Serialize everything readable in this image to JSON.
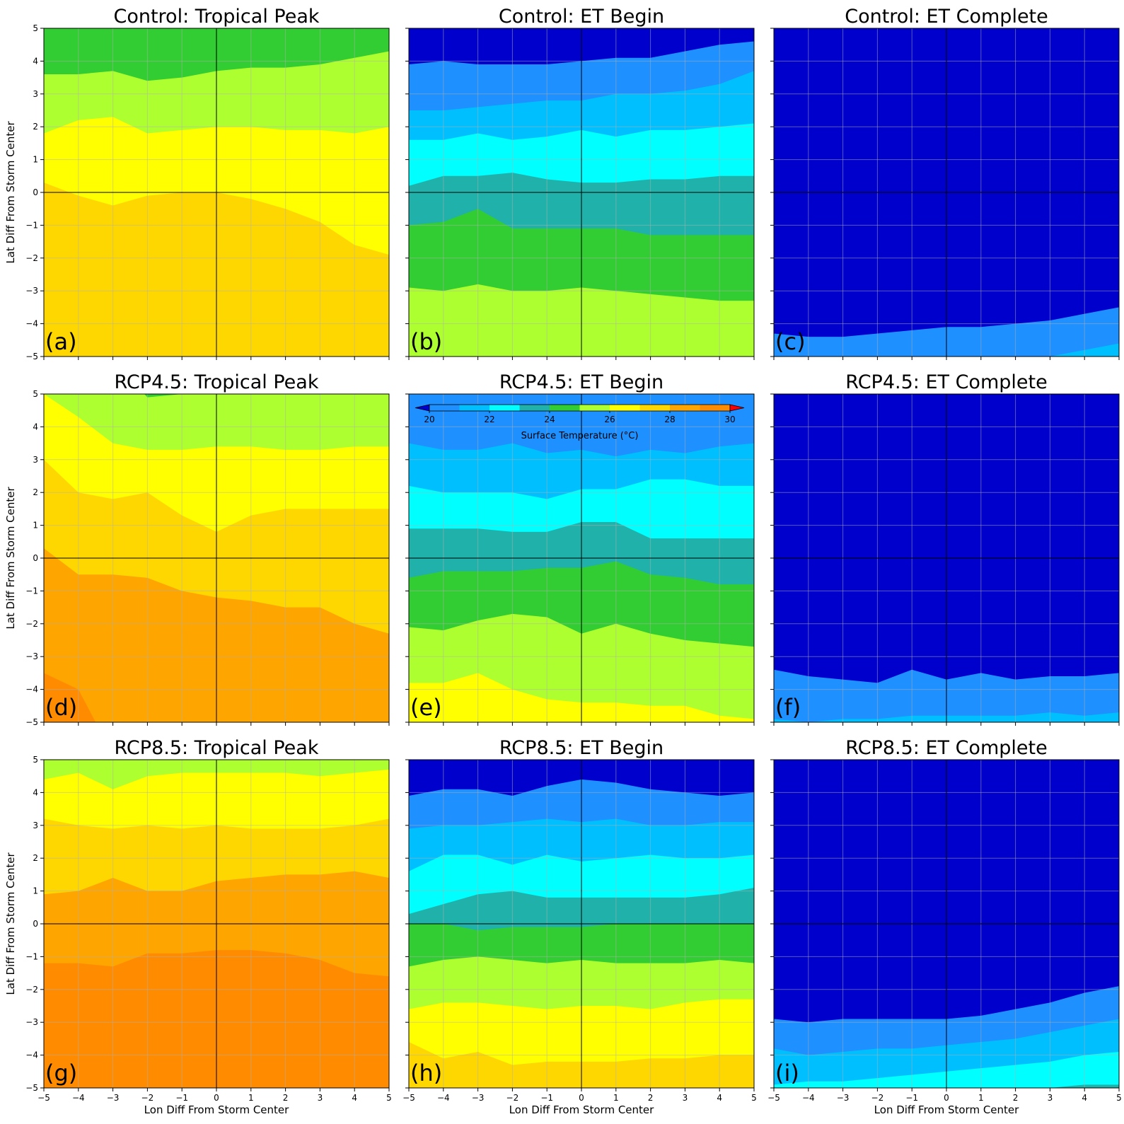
{
  "figure": {
    "colorbar": {
      "label": "Surface Temperature ($^\\circ$C)",
      "label_display": "Surface Temperature (°C)",
      "ticks": [
        "20",
        "22",
        "24",
        "26",
        "28",
        "30"
      ],
      "levels": [
        20,
        21,
        22,
        23,
        24,
        25,
        26,
        27,
        28,
        29,
        30
      ],
      "colors": {
        "below": "#0000cd",
        "20-21": "#1e90ff",
        "21-22": "#00bfff",
        "22-23": "#00ffff",
        "23-24": "#20b2aa",
        "24-25": "#32cd32",
        "25-26": "#adff2f",
        "26-27": "#ffff00",
        "27-28": "#ffd700",
        "28-29": "#ffa500",
        "29-30": "#ff8c00",
        "above": "#ff0000"
      }
    }
  },
  "chart_data": [
    {
      "type": "heatmap",
      "panel": "(a)",
      "title": "Control: Tropical Peak",
      "xlabel": "",
      "ylabel": "Lat Diff From Storm Center",
      "xlim": [
        -5,
        5
      ],
      "ylim": [
        -5,
        5
      ],
      "xticks": [
        "",
        "",
        "",
        "",
        "",
        "",
        "",
        "",
        "",
        "",
        ""
      ],
      "yticks": [
        "−5",
        "−4",
        "−3",
        "−2",
        "−1",
        "0",
        "1",
        "2",
        "3",
        "4",
        "5"
      ],
      "grid": true,
      "contour_boundaries": {
        "x": [
          -5,
          -4,
          -3,
          -2,
          -1,
          0,
          1,
          2,
          3,
          4,
          5
        ],
        "levels": [
          27,
          26,
          25,
          24
        ],
        "y": [
          [
            0.3,
            -0.1,
            -0.4,
            -0.1,
            0.0,
            0.0,
            -0.2,
            -0.5,
            -0.9,
            -1.6,
            -1.9
          ],
          [
            1.8,
            2.2,
            2.3,
            1.8,
            1.9,
            2.0,
            2.0,
            1.9,
            1.9,
            1.8,
            2.0
          ],
          [
            3.6,
            3.6,
            3.7,
            3.4,
            3.5,
            3.7,
            3.8,
            3.8,
            3.9,
            4.1,
            4.3
          ],
          [
            6,
            6,
            6,
            6,
            6,
            6,
            6,
            6,
            6,
            6,
            6
          ]
        ],
        "bottom_level_color": "27-28",
        "band_colors": [
          "26-27",
          "25-26",
          "24-25"
        ]
      }
    },
    {
      "type": "heatmap",
      "panel": "(b)",
      "title": "Control: ET Begin",
      "xlabel": "",
      "ylabel": "",
      "xlim": [
        -5,
        5
      ],
      "ylim": [
        -5,
        5
      ],
      "xticks": [
        "",
        "",
        "",
        "",
        "",
        "",
        "",
        "",
        "",
        "",
        ""
      ],
      "yticks": [
        "",
        "",
        "",
        "",
        "",
        "",
        "",
        "",
        "",
        "",
        ""
      ],
      "grid": true,
      "contour_boundaries": {
        "x": [
          -5,
          -4,
          -3,
          -2,
          -1,
          0,
          1,
          2,
          3,
          4,
          5
        ],
        "levels": [
          25,
          24,
          23,
          22,
          21,
          20
        ],
        "y": [
          [
            -2.9,
            -3.0,
            -2.8,
            -3.0,
            -3.0,
            -2.9,
            -3.0,
            -3.1,
            -3.2,
            -3.3,
            -3.3
          ],
          [
            -1.0,
            -0.9,
            -0.5,
            -1.1,
            -1.1,
            -1.1,
            -1.1,
            -1.3,
            -1.3,
            -1.3,
            -1.3
          ],
          [
            0.2,
            0.5,
            0.5,
            0.6,
            0.4,
            0.3,
            0.3,
            0.4,
            0.4,
            0.5,
            0.5
          ],
          [
            1.6,
            1.6,
            1.8,
            1.6,
            1.7,
            1.9,
            1.7,
            1.9,
            1.9,
            2.0,
            2.1
          ],
          [
            2.5,
            2.5,
            2.6,
            2.7,
            2.8,
            2.8,
            3.0,
            3.0,
            3.1,
            3.3,
            3.7
          ],
          [
            3.9,
            4.0,
            3.9,
            3.9,
            3.9,
            4.0,
            4.1,
            4.1,
            4.3,
            4.5,
            4.6
          ]
        ],
        "bottom_level_color": "25-26",
        "band_colors": [
          "24-25",
          "23-24",
          "22-23",
          "21-22",
          "20-21",
          "below"
        ]
      }
    },
    {
      "type": "heatmap",
      "panel": "(c)",
      "title": "Control: ET Complete",
      "xlabel": "",
      "ylabel": "",
      "xlim": [
        -5,
        5
      ],
      "ylim": [
        -5,
        5
      ],
      "xticks": [
        "",
        "",
        "",
        "",
        "",
        "",
        "",
        "",
        "",
        "",
        ""
      ],
      "yticks": [
        "",
        "",
        "",
        "",
        "",
        "",
        "",
        "",
        "",
        "",
        ""
      ],
      "grid": true,
      "contour_boundaries": {
        "x": [
          -5,
          -4,
          -3,
          -2,
          -1,
          0,
          1,
          2,
          3,
          4,
          5
        ],
        "levels": [
          21,
          20
        ],
        "y": [
          [
            -6,
            -6,
            -6,
            -6,
            -6,
            -6,
            -6,
            -6,
            -5.0,
            -4.8,
            -4.6
          ],
          [
            -4.3,
            -4.4,
            -4.4,
            -4.3,
            -4.2,
            -4.1,
            -4.1,
            -4.0,
            -3.9,
            -3.7,
            -3.5
          ]
        ],
        "bottom_level_color": "21-22",
        "band_colors": [
          "20-21",
          "below"
        ]
      }
    },
    {
      "type": "heatmap",
      "panel": "(d)",
      "title": "RCP4.5: Tropical Peak",
      "xlabel": "",
      "ylabel": "Lat Diff From Storm Center",
      "xlim": [
        -5,
        5
      ],
      "ylim": [
        -5,
        5
      ],
      "xticks": [
        "",
        "",
        "",
        "",
        "",
        "",
        "",
        "",
        "",
        "",
        ""
      ],
      "yticks": [
        "−5",
        "−4",
        "−3",
        "−2",
        "−1",
        "0",
        "1",
        "2",
        "3",
        "4",
        "5"
      ],
      "grid": true,
      "contour_boundaries": {
        "x": [
          -5,
          -4,
          -3,
          -2,
          -1,
          0,
          1,
          2,
          3,
          4,
          5
        ],
        "levels": [
          29,
          28,
          27,
          26,
          25
        ],
        "y": [
          [
            -3.5,
            -4.0,
            -6,
            -6,
            -6,
            -6,
            -6,
            -6,
            -6,
            -6,
            -6
          ],
          [
            0.3,
            -0.5,
            -0.5,
            -0.6,
            -1.0,
            -1.2,
            -1.3,
            -1.5,
            -1.5,
            -2.0,
            -2.3
          ],
          [
            3.0,
            2.0,
            1.8,
            2.0,
            1.3,
            0.8,
            1.3,
            1.5,
            1.5,
            1.5,
            1.5
          ],
          [
            5.0,
            4.3,
            3.5,
            3.3,
            3.3,
            3.4,
            3.4,
            3.3,
            3.3,
            3.4,
            3.4
          ],
          [
            6,
            6,
            6,
            4.9,
            5.0,
            6,
            6,
            6,
            6,
            5.0,
            5.0
          ]
        ],
        "bottom_level_color": "29-30",
        "band_colors": [
          "28-29",
          "27-28",
          "26-27",
          "25-26",
          "24-25"
        ]
      }
    },
    {
      "type": "heatmap",
      "panel": "(e)",
      "title": "RCP4.5: ET Begin",
      "xlabel": "",
      "ylabel": "",
      "xlim": [
        -5,
        5
      ],
      "ylim": [
        -5,
        5
      ],
      "xticks": [
        "",
        "",
        "",
        "",
        "",
        "",
        "",
        "",
        "",
        "",
        ""
      ],
      "yticks": [
        "",
        "",
        "",
        "",
        "",
        "",
        "",
        "",
        "",
        "",
        ""
      ],
      "grid": true,
      "contour_boundaries": {
        "x": [
          -5,
          -4,
          -3,
          -2,
          -1,
          0,
          1,
          2,
          3,
          4,
          5
        ],
        "levels": [
          26,
          25,
          24,
          23,
          22,
          21,
          20
        ],
        "y": [
          [
            -6,
            -6,
            -6,
            -6,
            -6,
            -6,
            -6,
            -6,
            -6,
            -6,
            -6
          ],
          [
            -3.8,
            -3.8,
            -3.5,
            -4.0,
            -4.3,
            -4.4,
            -4.4,
            -4.5,
            -4.5,
            -4.8,
            -4.9
          ],
          [
            -2.1,
            -2.2,
            -1.9,
            -1.7,
            -1.8,
            -2.3,
            -2.0,
            -2.3,
            -2.5,
            -2.6,
            -2.7
          ],
          [
            -0.6,
            -0.4,
            -0.4,
            -0.4,
            -0.3,
            -0.3,
            -0.1,
            -0.5,
            -0.6,
            -0.8,
            -0.8
          ],
          [
            0.9,
            0.9,
            0.9,
            0.8,
            0.8,
            1.1,
            1.1,
            0.6,
            0.6,
            0.6,
            0.6
          ],
          [
            2.2,
            2.0,
            2.0,
            2.0,
            1.8,
            2.1,
            2.1,
            2.4,
            2.4,
            2.2,
            2.2
          ],
          [
            3.5,
            3.3,
            3.3,
            3.5,
            3.2,
            3.3,
            3.1,
            3.3,
            3.2,
            3.4,
            3.5
          ]
        ],
        "bottom_level_color": "27-28",
        "band_colors": [
          "26-27",
          "25-26",
          "24-25",
          "23-24",
          "22-23",
          "21-22",
          "20-21"
        ]
      }
    },
    {
      "type": "heatmap",
      "panel": "(f)",
      "title": "RCP4.5: ET Complete",
      "xlabel": "",
      "ylabel": "",
      "xlim": [
        -5,
        5
      ],
      "ylim": [
        -5,
        5
      ],
      "xticks": [
        "",
        "",
        "",
        "",
        "",
        "",
        "",
        "",
        "",
        "",
        ""
      ],
      "yticks": [
        "",
        "",
        "",
        "",
        "",
        "",
        "",
        "",
        "",
        "",
        ""
      ],
      "grid": true,
      "contour_boundaries": {
        "x": [
          -5,
          -4,
          -3,
          -2,
          -1,
          0,
          1,
          2,
          3,
          4,
          5
        ],
        "levels": [
          21,
          20
        ],
        "y": [
          [
            -4.9,
            -5.0,
            -4.9,
            -4.9,
            -4.8,
            -4.8,
            -4.8,
            -4.8,
            -4.7,
            -4.8,
            -4.7
          ],
          [
            -3.4,
            -3.6,
            -3.7,
            -3.8,
            -3.4,
            -3.7,
            -3.5,
            -3.7,
            -3.6,
            -3.6,
            -3.5
          ]
        ],
        "bottom_level_color": "21-22",
        "band_colors": [
          "20-21",
          "below"
        ]
      }
    },
    {
      "type": "heatmap",
      "panel": "(g)",
      "title": "RCP8.5: Tropical Peak",
      "xlabel": "Lon Diff From Storm Center",
      "ylabel": "Lat Diff From Storm Center",
      "xlim": [
        -5,
        5
      ],
      "ylim": [
        -5,
        5
      ],
      "xticks": [
        "−5",
        "−4",
        "−3",
        "−2",
        "−1",
        "0",
        "1",
        "2",
        "3",
        "4",
        "5"
      ],
      "yticks": [
        "−5",
        "−4",
        "−3",
        "−2",
        "−1",
        "0",
        "1",
        "2",
        "3",
        "4",
        "5"
      ],
      "grid": true,
      "contour_boundaries": {
        "x": [
          -5,
          -4,
          -3,
          -2,
          -1,
          0,
          1,
          2,
          3,
          4,
          5
        ],
        "levels": [
          28,
          27,
          26,
          25
        ],
        "y": [
          [
            -1.2,
            -1.2,
            -1.3,
            -0.9,
            -0.9,
            -0.8,
            -0.8,
            -0.9,
            -1.1,
            -1.5,
            -1.6
          ],
          [
            0.9,
            1.0,
            1.4,
            1.0,
            1.0,
            1.3,
            1.4,
            1.5,
            1.5,
            1.6,
            1.4
          ],
          [
            3.2,
            3.0,
            2.9,
            3.0,
            2.9,
            3.0,
            2.9,
            2.9,
            2.9,
            3.0,
            3.2
          ],
          [
            4.4,
            4.6,
            4.1,
            4.5,
            4.6,
            4.6,
            4.6,
            4.6,
            4.5,
            4.6,
            4.7
          ]
        ],
        "bottom_level_color": "29-30",
        "band_colors": [
          "28-29",
          "27-28",
          "26-27",
          "25-26"
        ]
      }
    },
    {
      "type": "heatmap",
      "panel": "(h)",
      "title": "RCP8.5: ET Begin",
      "xlabel": "Lon Diff From Storm Center",
      "ylabel": "",
      "xlim": [
        -5,
        5
      ],
      "ylim": [
        -5,
        5
      ],
      "xticks": [
        "−5",
        "−4",
        "−3",
        "−2",
        "−1",
        "0",
        "1",
        "2",
        "3",
        "4",
        "5"
      ],
      "yticks": [
        "",
        "",
        "",
        "",
        "",
        "",
        "",
        "",
        "",
        "",
        ""
      ],
      "grid": true,
      "contour_boundaries": {
        "x": [
          -5,
          -4,
          -3,
          -2,
          -1,
          0,
          1,
          2,
          3,
          4,
          5
        ],
        "levels": [
          27,
          26,
          25,
          24,
          23,
          22,
          21,
          20
        ],
        "y": [
          [
            -3.6,
            -4.1,
            -3.9,
            -4.3,
            -4.2,
            -4.2,
            -4.2,
            -4.1,
            -4.1,
            -4.0,
            -4.0
          ],
          [
            -2.6,
            -2.4,
            -2.4,
            -2.5,
            -2.6,
            -2.5,
            -2.5,
            -2.6,
            -2.4,
            -2.3,
            -2.3
          ],
          [
            -1.3,
            -1.1,
            -1.0,
            -1.1,
            -1.2,
            -1.1,
            -1.2,
            -1.2,
            -1.2,
            -1.1,
            -1.2
          ],
          [
            0.0,
            0.0,
            -0.2,
            -0.1,
            -0.1,
            -0.1,
            0.0,
            0.0,
            0.0,
            0.0,
            0.0
          ],
          [
            0.3,
            0.6,
            0.9,
            1.0,
            0.8,
            0.8,
            0.8,
            0.8,
            0.8,
            0.9,
            1.1
          ],
          [
            1.6,
            2.1,
            2.1,
            1.8,
            2.1,
            1.9,
            2.0,
            2.1,
            2.0,
            2.0,
            2.1
          ],
          [
            2.9,
            3.0,
            3.0,
            3.1,
            3.2,
            3.1,
            3.2,
            3.0,
            3.0,
            3.1,
            3.1
          ],
          [
            3.9,
            4.1,
            4.1,
            3.9,
            4.2,
            4.4,
            4.3,
            4.1,
            4.0,
            3.9,
            4.0
          ]
        ],
        "bottom_level_color": "27-28",
        "band_colors": [
          "26-27",
          "25-26",
          "24-25",
          "23-24",
          "22-23",
          "21-22",
          "20-21",
          "below"
        ]
      }
    },
    {
      "type": "heatmap",
      "panel": "(i)",
      "title": "RCP8.5: ET Complete",
      "xlabel": "Lon Diff From Storm Center",
      "ylabel": "",
      "xlim": [
        -5,
        5
      ],
      "ylim": [
        -5,
        5
      ],
      "xticks": [
        "−5",
        "−4",
        "−3",
        "−2",
        "−1",
        "0",
        "1",
        "2",
        "3",
        "4",
        "5"
      ],
      "yticks": [
        "",
        "",
        "",
        "",
        "",
        "",
        "",
        "",
        "",
        "",
        ""
      ],
      "grid": true,
      "contour_boundaries": {
        "x": [
          -5,
          -4,
          -3,
          -2,
          -1,
          0,
          1,
          2,
          3,
          4,
          5
        ],
        "levels": [
          23,
          22,
          21,
          20
        ],
        "y": [
          [
            -6,
            -6,
            -6,
            -6,
            -6,
            -6,
            -6,
            -6,
            -5.0,
            -4.9,
            -4.9
          ],
          [
            -4.9,
            -4.8,
            -4.8,
            -4.7,
            -4.6,
            -4.5,
            -4.4,
            -4.3,
            -4.2,
            -4.0,
            -3.9
          ],
          [
            -3.8,
            -4.0,
            -3.9,
            -3.8,
            -3.8,
            -3.7,
            -3.6,
            -3.5,
            -3.3,
            -3.1,
            -2.9
          ],
          [
            -2.9,
            -3.0,
            -2.9,
            -2.9,
            -2.9,
            -2.9,
            -2.8,
            -2.6,
            -2.4,
            -2.1,
            -1.9
          ]
        ],
        "bottom_level_color": "23-24",
        "band_colors": [
          "22-23",
          "21-22",
          "20-21",
          "below"
        ]
      }
    }
  ]
}
